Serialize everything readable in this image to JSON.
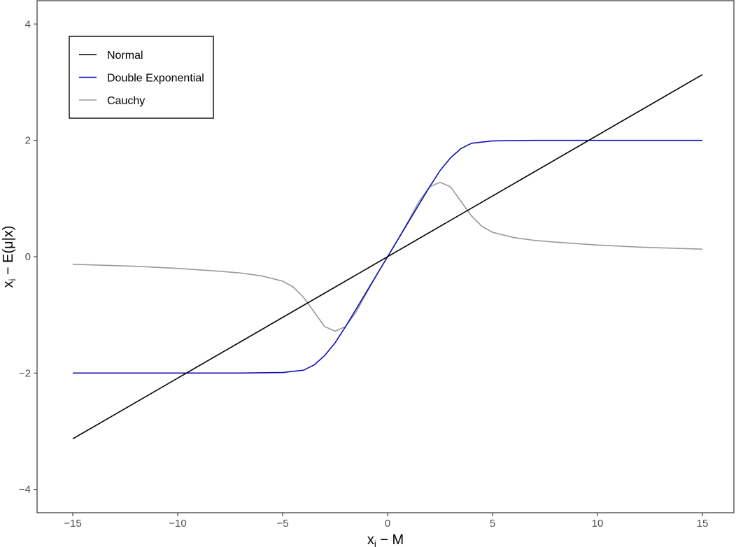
{
  "chart_data": {
    "type": "line",
    "xlabel": "x_i − M",
    "ylabel": "x_i − E(μ|x)",
    "xlim": [
      -16.7,
      16.5
    ],
    "ylim": [
      -4.4,
      4.4
    ],
    "x_ticks": [
      -15,
      -10,
      -5,
      0,
      5,
      10,
      15
    ],
    "y_ticks": [
      -4,
      -2,
      0,
      2,
      4
    ],
    "x_tick_labels": [
      "−15",
      "−10",
      "−5",
      "0",
      "5",
      "10",
      "15"
    ],
    "y_tick_labels": [
      "−4",
      "−2",
      "0",
      "2",
      "4"
    ],
    "grid": false,
    "legend_position": "top-left",
    "series": [
      {
        "name": "Normal",
        "color": "#000000",
        "x": [
          -15,
          15
        ],
        "y": [
          -3.13,
          3.13
        ]
      },
      {
        "name": "Double Exponential",
        "color": "#1010b0",
        "x": [
          -15,
          -7,
          -5,
          -4,
          -3.5,
          -3,
          -2.5,
          -2,
          -1.5,
          -1,
          -0.5,
          0,
          0.5,
          1,
          1.5,
          2,
          2.5,
          3,
          3.5,
          4,
          5,
          7,
          15
        ],
        "y": [
          -2,
          -2,
          -1.99,
          -1.95,
          -1.86,
          -1.7,
          -1.48,
          -1.2,
          -0.9,
          -0.6,
          -0.3,
          0,
          0.3,
          0.6,
          0.9,
          1.2,
          1.48,
          1.7,
          1.86,
          1.95,
          1.99,
          2,
          2
        ]
      },
      {
        "name": "Cauchy",
        "color": "#999999",
        "x": [
          -15,
          -12,
          -10,
          -8,
          -7,
          -6,
          -5,
          -4.5,
          -4,
          -3.5,
          -3,
          -2.5,
          -2,
          -1.5,
          -1,
          -0.5,
          0,
          0.5,
          1,
          1.5,
          2,
          2.5,
          3,
          3.5,
          4,
          4.5,
          5,
          6,
          7,
          8,
          10,
          12,
          15
        ],
        "y": [
          -0.13,
          -0.165,
          -0.2,
          -0.25,
          -0.28,
          -0.33,
          -0.42,
          -0.52,
          -0.7,
          -0.95,
          -1.2,
          -1.28,
          -1.2,
          -0.95,
          -0.62,
          -0.3,
          0,
          0.3,
          0.62,
          0.95,
          1.2,
          1.28,
          1.2,
          0.95,
          0.7,
          0.52,
          0.42,
          0.33,
          0.28,
          0.25,
          0.2,
          0.165,
          0.13
        ]
      }
    ]
  }
}
